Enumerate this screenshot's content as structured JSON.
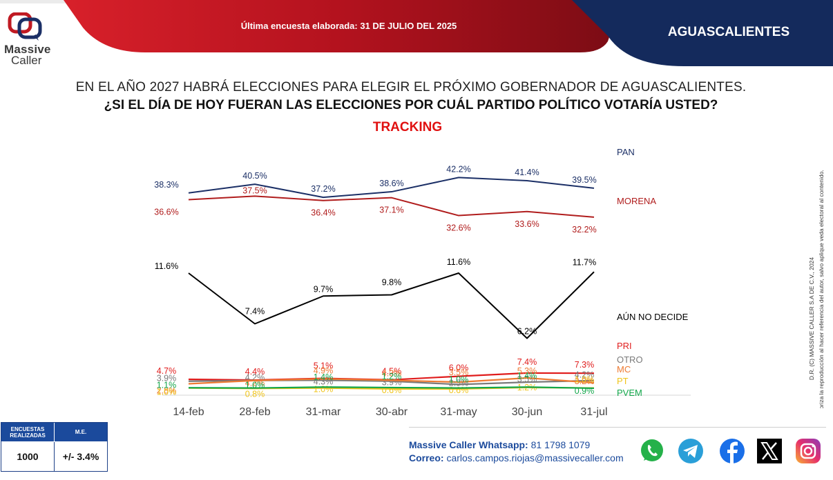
{
  "header": {
    "logo_line1": "Massive",
    "logo_line2": "Caller",
    "banner_text": "Última encuesta elaborada: 31 DE JULIO DEL 2025",
    "region": "AGUASCALIENTES"
  },
  "question": {
    "line1": "EN EL AÑO 2027 HABRÁ ELECCIONES PARA ELEGIR EL PRÓXIMO GOBERNADOR DE AGUASCALIENTES.",
    "line2": "¿SI EL DÍA DE HOY FUERAN LAS ELECCIONES POR CUÁL PARTIDO POLÍTICO VOTARÍA USTED?"
  },
  "chart_data": {
    "type": "line",
    "title": "TRACKING",
    "categories": [
      "14-feb",
      "28-feb",
      "31-mar",
      "30-abr",
      "31-may",
      "30-jun",
      "31-jul"
    ],
    "grid": false,
    "legend": "labels at right end of each line",
    "series": [
      {
        "name": "PAN",
        "color": "#1b2f66",
        "values": [
          38.3,
          40.5,
          37.2,
          38.6,
          42.2,
          41.4,
          39.5
        ],
        "labels": [
          "38.3%",
          "40.5%",
          "37.2%",
          "38.6%",
          "42.2%",
          "41.4%",
          "39.5%"
        ]
      },
      {
        "name": "MORENA",
        "color": "#b01c1c",
        "values": [
          36.6,
          37.5,
          36.4,
          37.1,
          32.6,
          33.6,
          32.2
        ],
        "labels": [
          "36.6%",
          "37.5%",
          "36.4%",
          "37.1%",
          "32.6%",
          "33.6%",
          "32.2%"
        ]
      },
      {
        "name": "AÚN NO DECIDE",
        "color": "#000000",
        "values": [
          11.6,
          7.4,
          9.7,
          9.8,
          11.6,
          6.2,
          11.7
        ],
        "labels": [
          "11.6%",
          "7.4%",
          "9.7%",
          "9.8%",
          "11.6%",
          "6.2%",
          "11.7%"
        ]
      },
      {
        "name": "PRI",
        "color": "#e01c1c",
        "values": [
          4.7,
          4.4,
          5.1,
          4.5,
          6.0,
          7.4,
          7.3
        ],
        "labels": [
          "4.7%",
          "4.4%",
          "5.1%",
          "4.5%",
          "6.0%",
          "7.4%",
          "7.3%"
        ]
      },
      {
        "name": "OTRO",
        "color": "#7a7a7a",
        "values": [
          3.9,
          4.2,
          4.3,
          3.9,
          2.5,
          3.5,
          4.2
        ],
        "labels": [
          "3.9%",
          "4.2%",
          "4.3%",
          "3.9%",
          "2.5%",
          "3.5%",
          "4.2%"
        ]
      },
      {
        "name": "MC",
        "color": "#ee7a32",
        "values": [
          2.8,
          4.2,
          4.9,
          4.3,
          3.5,
          5.3,
          3.2
        ],
        "labels": [
          "2.8%",
          "4.2%",
          "4.9%",
          "4.3%",
          "3.5%",
          "5.3%",
          "3.2%"
        ]
      },
      {
        "name": "PT",
        "color": "#f0c419",
        "values": [
          1.0,
          0.8,
          1.0,
          0.6,
          0.6,
          1.2,
          1.0
        ],
        "labels": [
          "1.0%",
          "0.8%",
          "1.0%",
          "0.6%",
          "0.6%",
          "1.2%",
          "1.0%"
        ]
      },
      {
        "name": "PVEM",
        "color": "#12a64a",
        "values": [
          1.1,
          1.0,
          1.4,
          1.2,
          1.0,
          1.4,
          0.9
        ],
        "labels": [
          "1.1%",
          "1.0%",
          "1.4%",
          "1.2%",
          "1.0%",
          "1.4%",
          "0.9%"
        ]
      }
    ]
  },
  "footer": {
    "surveys_header": "ENCUESTAS REALIZADAS",
    "me_header": "M.E.",
    "surveys_value": "1000",
    "me_value": "+/- 3.4%",
    "whatsapp_label": "Massive Caller Whatsapp:",
    "whatsapp_value": "81 1798 1079",
    "email_label": "Correo:",
    "email_value": "carlos.campos.riojas@massivecaller.com",
    "social_icons": [
      "whatsapp-icon",
      "telegram-icon",
      "facebook-icon",
      "x-icon",
      "instagram-icon"
    ]
  },
  "side_note": {
    "line1": "D.R. (C) MASSIVE CALLER S.A DE C.V., 2024",
    "line2": "Se autoriza la reproducción al hacer referencia del autor, salvo aplique veda electoral al contenido."
  },
  "colors": {
    "banner_red": "#b3121e",
    "banner_navy": "#142a5c",
    "title_red": "#e01010",
    "table_blue": "#1b4a9c"
  }
}
